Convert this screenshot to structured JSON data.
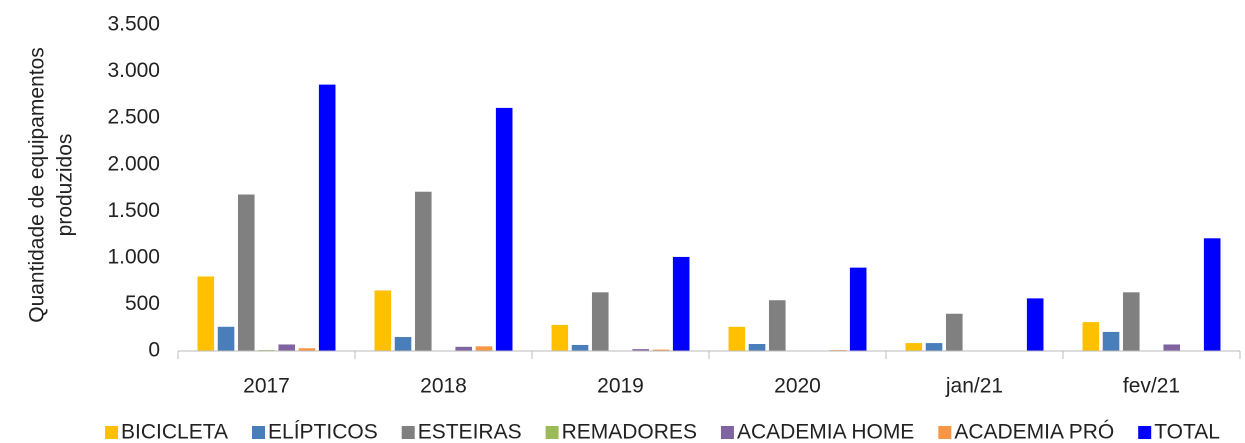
{
  "chart_data": {
    "type": "bar",
    "ylabel": [
      "Quantidade de equipamentos",
      "produzidos"
    ],
    "categories": [
      "2017",
      "2018",
      "2019",
      "2020",
      "jan/21",
      "fev/21"
    ],
    "series": [
      {
        "name": "BICICLETA",
        "color": "#ffc000",
        "values": [
          800,
          650,
          280,
          260,
          85,
          310
        ]
      },
      {
        "name": "ELÍPTICOS",
        "color": "#4a7ebb",
        "values": [
          260,
          150,
          65,
          75,
          85,
          205
        ]
      },
      {
        "name": "ESTEIRAS",
        "color": "#808080",
        "values": [
          1680,
          1710,
          630,
          545,
          400,
          630
        ]
      },
      {
        "name": "REMADORES",
        "color": "#9bbb59",
        "values": [
          10,
          0,
          0,
          0,
          0,
          0
        ]
      },
      {
        "name": "ACADEMIA HOME",
        "color": "#8064a2",
        "values": [
          70,
          45,
          20,
          5,
          0,
          70
        ]
      },
      {
        "name": "ACADEMIA PRÓ",
        "color": "#f79646",
        "values": [
          30,
          50,
          15,
          10,
          0,
          0
        ]
      },
      {
        "name": "TOTAL",
        "color": "#0000ff",
        "values": [
          2860,
          2610,
          1010,
          895,
          565,
          1210
        ]
      }
    ],
    "ylim": [
      0,
      3500
    ],
    "yticks": [
      0,
      500,
      {
        "value": 1000,
        "label": "1.000"
      },
      {
        "value": 1500,
        "label": "1.500"
      },
      {
        "value": 2000,
        "label": "2.000"
      },
      {
        "value": 2500,
        "label": "2.500"
      },
      {
        "value": 3000,
        "label": "3.000"
      },
      {
        "value": 3500,
        "label": "3.500"
      }
    ],
    "grid": false,
    "legend": "bottom"
  }
}
